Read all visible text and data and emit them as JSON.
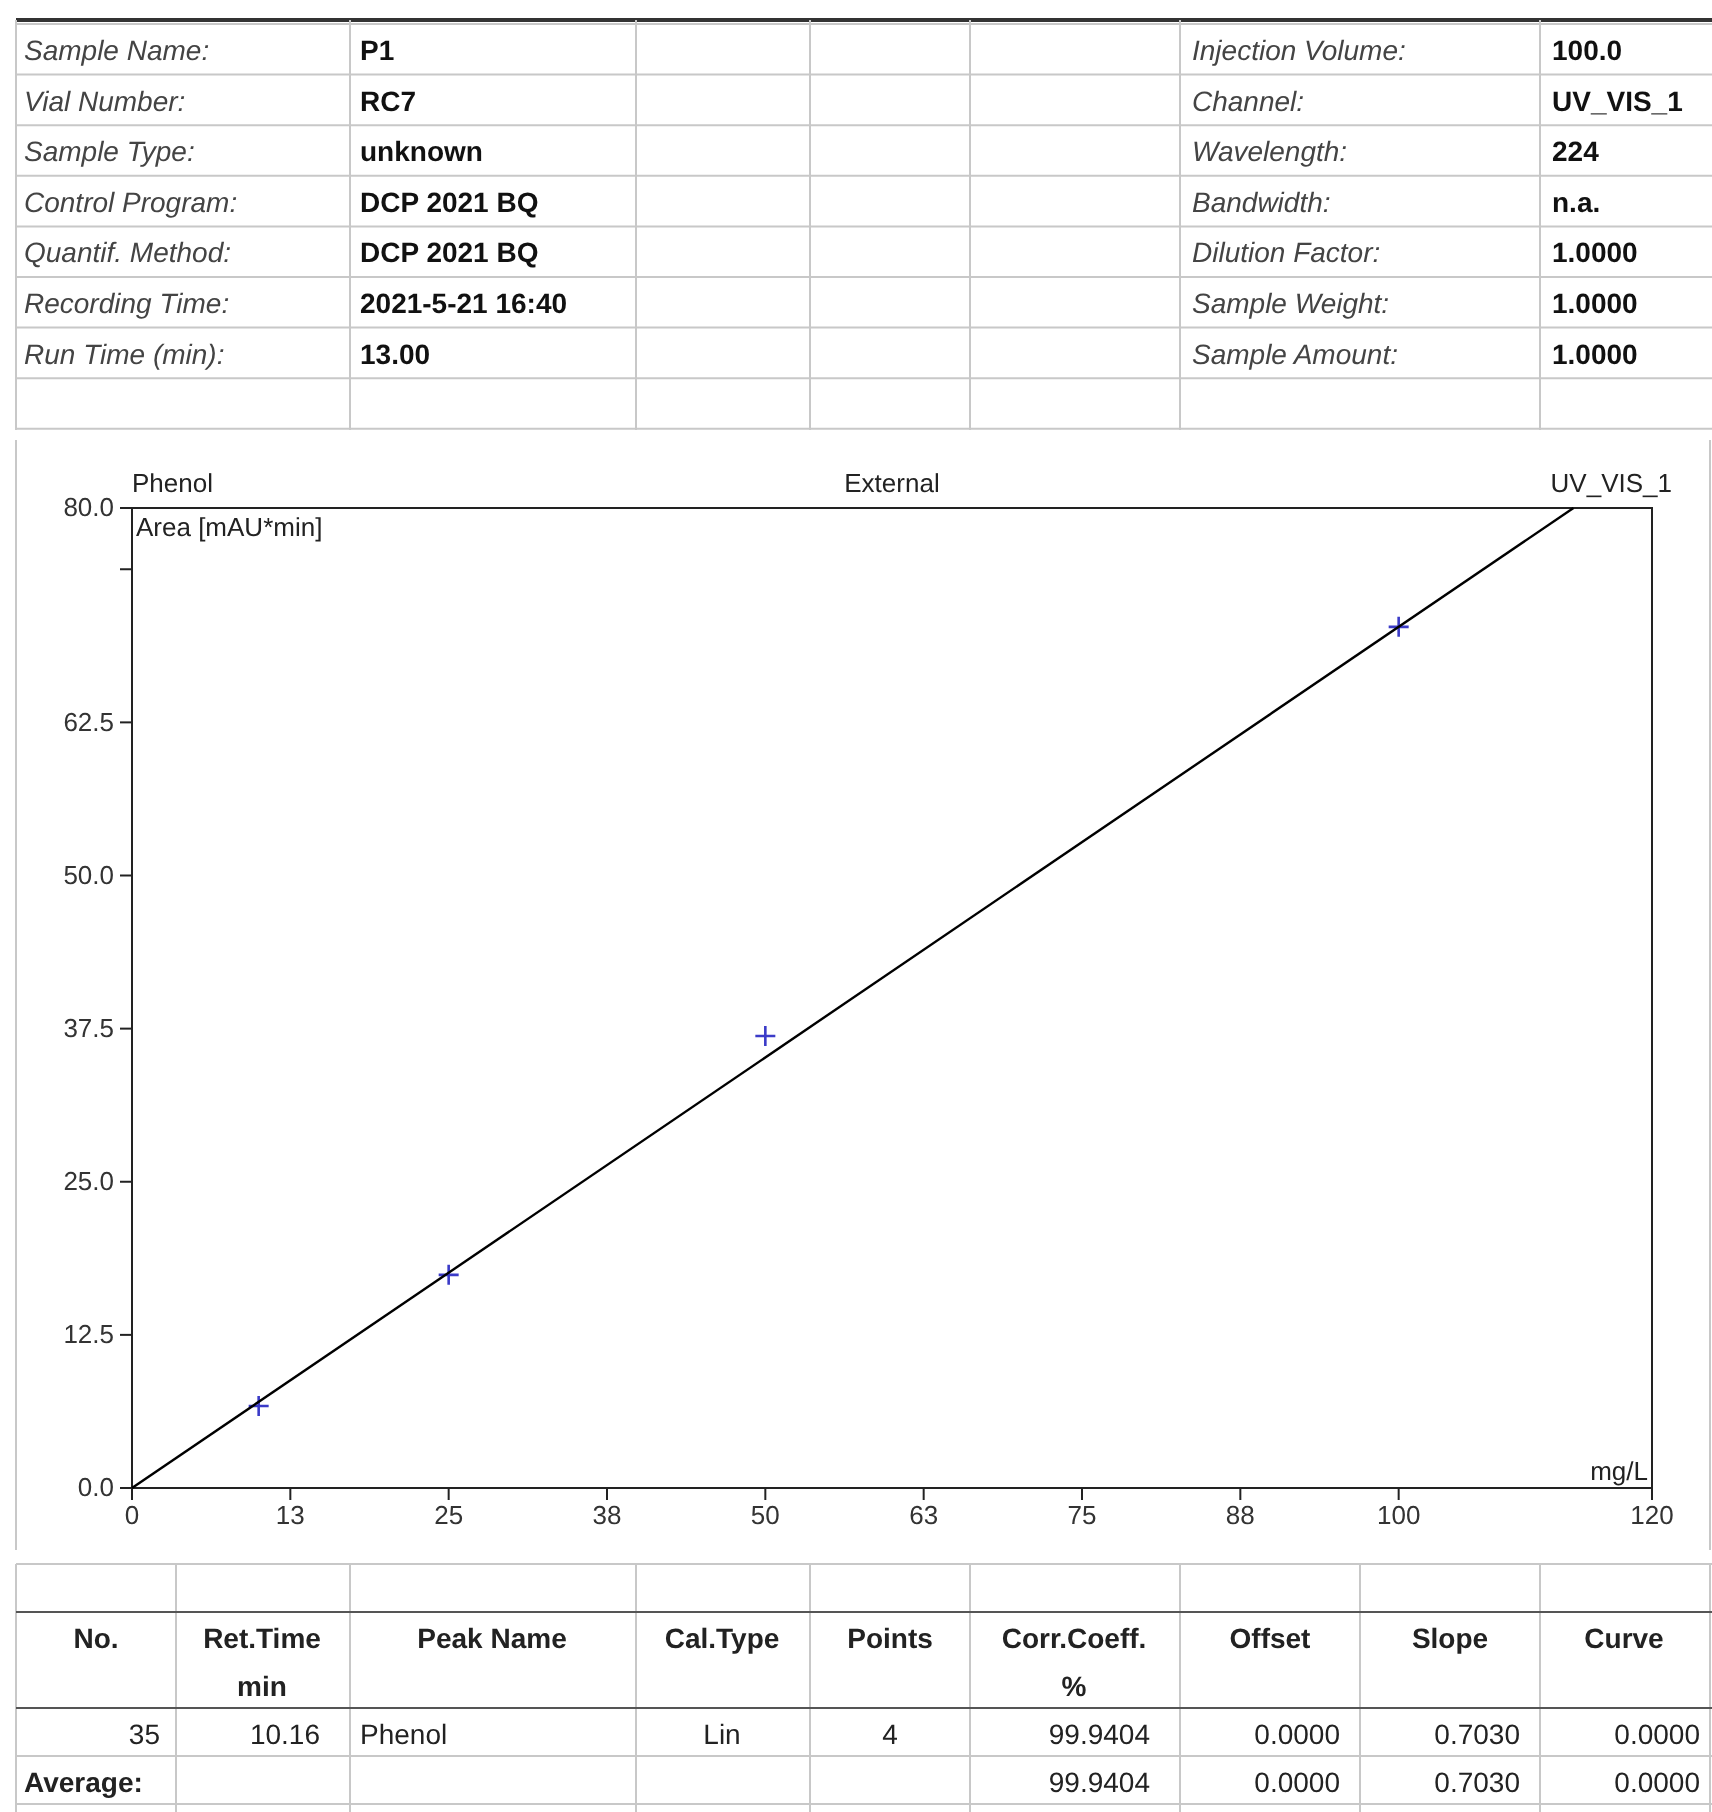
{
  "chart_data": {
    "type": "scatter",
    "title": "Phenol",
    "subtitle": "External",
    "xlabel": "mg/L",
    "ylabel": "Area [mAU*min]",
    "xlim": [
      0,
      120
    ],
    "ylim": [
      0,
      80
    ],
    "xticks": [
      0,
      {
        "value": 12.5,
        "label": "13"
      },
      25,
      {
        "value": 37.5,
        "label": "38"
      },
      50,
      {
        "value": 62.5,
        "label": "63"
      },
      75,
      {
        "value": 87.5,
        "label": "88"
      },
      100,
      120
    ],
    "yticks": [
      {
        "value": 0,
        "label": "0.0"
      },
      12.5,
      {
        "value": 25,
        "label": "25.0"
      },
      37.5,
      {
        "value": 50,
        "label": "50.0"
      },
      62.5,
      {
        "value": 75,
        "label": null
      },
      {
        "value": 80,
        "label": "80.0"
      }
    ],
    "grid": false,
    "series": [
      {
        "marker": "cross",
        "color": "#3b3bc8",
        "x": [
          10,
          25,
          50,
          100
        ],
        "values": [
          6.7,
          17.4,
          36.9,
          70.3
        ]
      },
      {
        "type": "line",
        "marker": "none",
        "line_style": "solid",
        "color": "#000000",
        "x": [
          0,
          113.8
        ],
        "values": [
          0,
          80
        ]
      }
    ],
    "annotations": [
      "UV_VIS_1",
      "Sample Name:",
      "P1",
      "Injection Volume:",
      "100.0",
      "Vial Number:",
      "RC7",
      "Channel:",
      "UV_VIS_1",
      "Sample Type:",
      "unknown",
      "Wavelength:",
      "224",
      "Control Program:",
      "DCP 2021 BQ",
      "Bandwidth:",
      "n.a.",
      "Quantif. Method:",
      "DCP 2021 BQ",
      "Dilution Factor:",
      "1.0000",
      "Recording Time:",
      "2021-5-21 16:40",
      "Sample Weight:",
      "1.0000",
      "Run Time (min):",
      "13.00",
      "Sample Amount:",
      "1.0000",
      "No.",
      "Ret.Time",
      "Peak Name",
      "Cal.Type",
      "Points",
      "Corr.Coeff.",
      "Offset",
      "Slope",
      "Curve",
      "min",
      "%",
      "35",
      "10.16",
      "Phenol",
      "Lin",
      "4",
      "99.9404",
      "0.0000",
      "0.7030",
      "0.0000",
      "Average:",
      "99.9404",
      "0.0000",
      "0.7030",
      "0.0000"
    ]
  }
}
